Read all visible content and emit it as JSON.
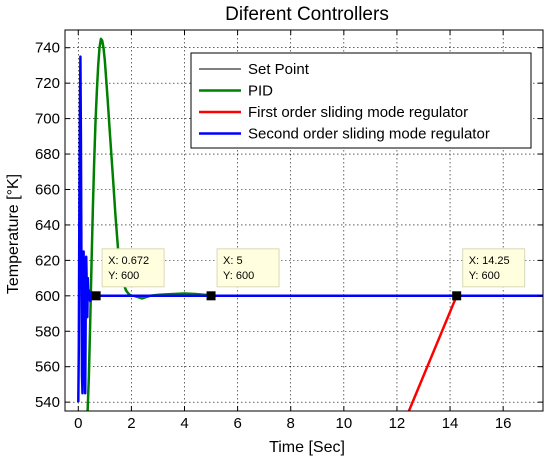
{
  "chart_data": {
    "type": "line",
    "title": "Diferent Controllers",
    "xlabel": "Time [Sec]",
    "ylabel": "Temperature [°K]",
    "xlim": [
      -0.5,
      17.5
    ],
    "ylim": [
      535,
      750
    ],
    "x_ticks": [
      0,
      2,
      4,
      6,
      8,
      10,
      12,
      14,
      16
    ],
    "y_ticks": [
      540,
      560,
      580,
      600,
      620,
      640,
      660,
      680,
      700,
      720,
      740
    ],
    "grid": true,
    "legend_position": "top-right",
    "series": [
      {
        "name": "Set Point",
        "color": "#000000",
        "x": [
          0,
          17.5
        ],
        "y": [
          600,
          600
        ]
      },
      {
        "name": "PID",
        "color": "#008000",
        "x": [
          0.35,
          0.4,
          0.45,
          0.5,
          0.55,
          0.6,
          0.65,
          0.7,
          0.75,
          0.8,
          0.85,
          0.9,
          0.95,
          1.0,
          1.1,
          1.2,
          1.3,
          1.4,
          1.5,
          1.6,
          1.7,
          1.8,
          1.9,
          2.0,
          2.1,
          2.2,
          2.3,
          2.4,
          2.5,
          2.7,
          3.0,
          3.3,
          3.6,
          4.0,
          4.4,
          4.8,
          5.0
        ],
        "y": [
          535,
          555,
          585,
          620,
          650,
          676,
          698,
          716,
          730,
          740,
          745,
          744,
          740,
          733,
          712,
          690,
          668,
          645,
          626,
          615,
          607,
          603,
          601,
          600,
          600,
          599.5,
          599,
          598.5,
          599,
          600,
          600.5,
          600.8,
          601,
          601.3,
          601,
          600.5,
          600
        ]
      },
      {
        "name": "First order sliding mode regulator",
        "color": "#ff0000",
        "x": [
          12.45,
          14.25
        ],
        "y": [
          535,
          600
        ]
      },
      {
        "name": "Second order sliding mode regulator",
        "color": "#0000ff",
        "x": [
          0,
          0.02,
          0.04,
          0.06,
          0.08,
          0.1,
          0.12,
          0.14,
          0.16,
          0.18,
          0.2,
          0.22,
          0.24,
          0.26,
          0.28,
          0.3,
          0.32,
          0.34,
          0.36,
          0.38,
          0.4,
          0.45,
          0.5,
          0.55,
          0.6,
          0.672,
          1.0,
          2.0,
          5.0,
          10.0,
          14.25,
          17.5
        ],
        "y": [
          540,
          570,
          640,
          700,
          735,
          690,
          610,
          555,
          545,
          580,
          625,
          600,
          570,
          545,
          590,
          622,
          605,
          588,
          610,
          598,
          603,
          597,
          602,
          599,
          600.5,
          600,
          600,
          600,
          600,
          600,
          600,
          600
        ]
      }
    ],
    "annotations": [
      {
        "x": 0.672,
        "y": 600,
        "x_text": "X: 0.672",
        "y_text": "Y: 600"
      },
      {
        "x": 5,
        "y": 600,
        "x_text": "X: 5",
        "y_text": "Y: 600"
      },
      {
        "x": 14.25,
        "y": 600,
        "x_text": "X: 14.25",
        "y_text": "Y: 600"
      }
    ]
  }
}
